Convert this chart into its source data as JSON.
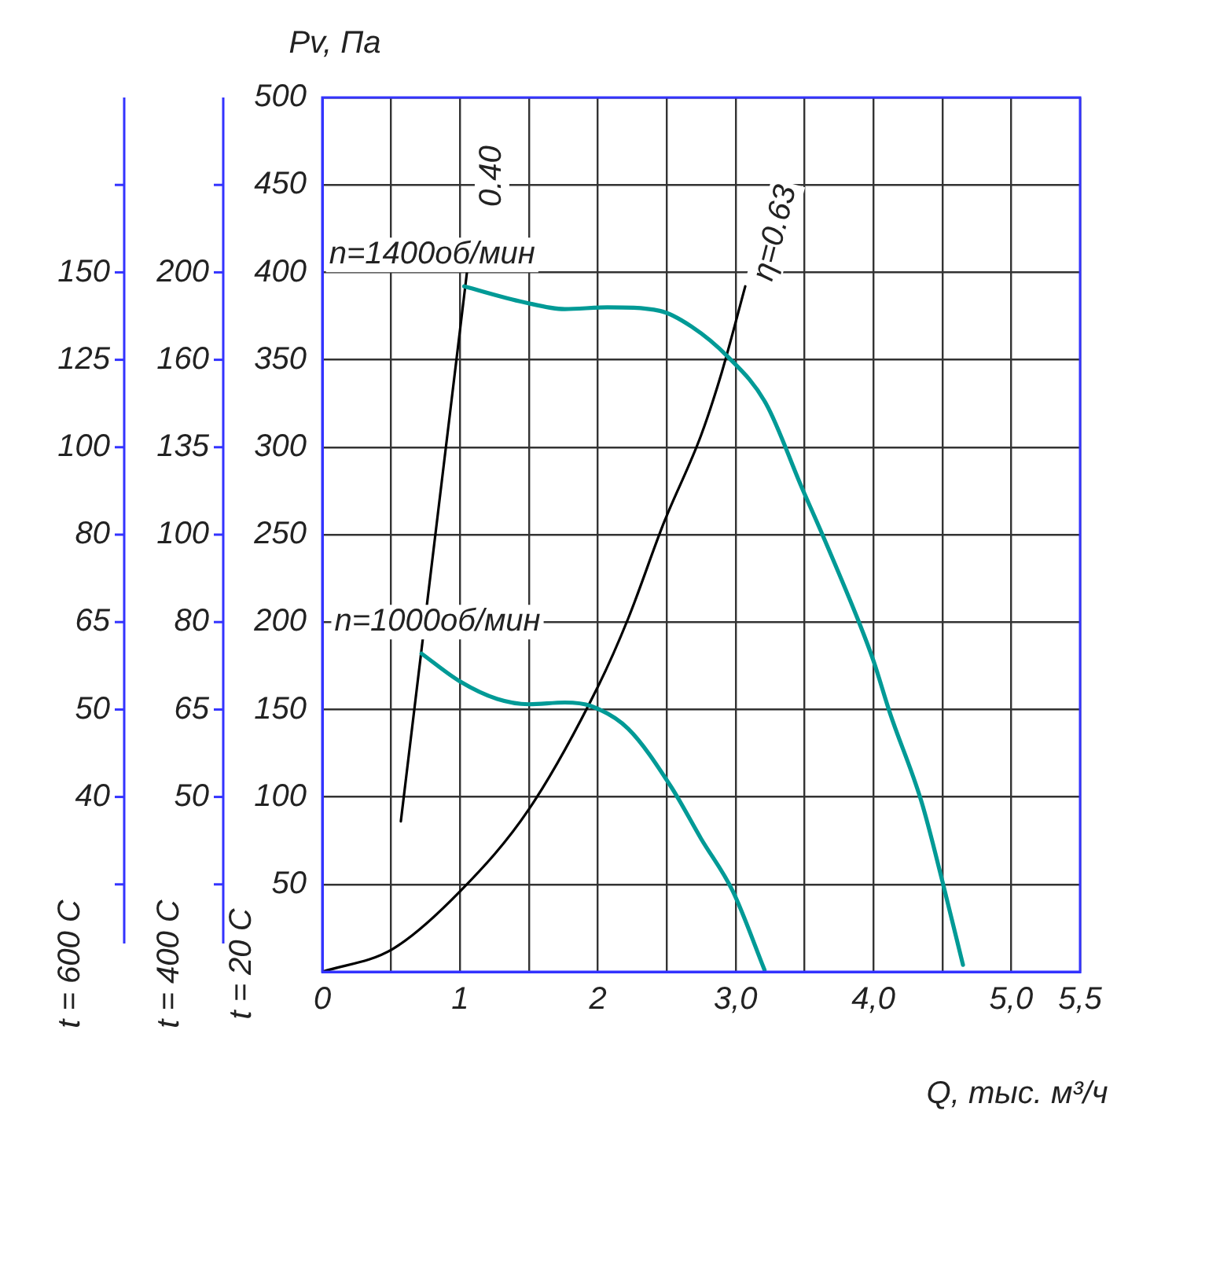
{
  "chart_data": {
    "type": "line",
    "xlabel": "Q, тыс. м³/ч",
    "ylabel": "Pv, Па",
    "y2label": "t = 400 С",
    "y3label": "t = 600 С",
    "xlim": [
      0,
      5.5
    ],
    "xticks": [
      0,
      {
        "value": 0.5,
        "label": null
      },
      1,
      {
        "value": 1.5,
        "label": null
      },
      2,
      {
        "value": 2.5,
        "label": null
      },
      {
        "value": 3,
        "label": "3,0"
      },
      {
        "value": 3.5,
        "label": null
      },
      {
        "value": 4,
        "label": "4,0"
      },
      {
        "value": 4.5,
        "label": null
      },
      {
        "value": 5,
        "label": "5,0"
      },
      {
        "value": 5.5,
        "label": "5,5"
      }
    ],
    "ylim": [
      0,
      500
    ],
    "yticks": [
      {
        "value": 0,
        "label": null
      },
      50,
      100,
      150,
      200,
      250,
      300,
      350,
      400,
      450,
      500
    ],
    "y2_categories": [
      null,
      "200",
      "160",
      "135",
      "100",
      "80",
      "65",
      "50",
      null
    ],
    "grid": true,
    "legend": false,
    "marker": "none",
    "line_style": "solid",
    "series": [
      {
        "color": "#009a96",
        "x": [
          1.03,
          1.46,
          1.76,
          2.07,
          2.45,
          2.68,
          2.94,
          3.22,
          3.48,
          3.63,
          3.9,
          4.0,
          4.12,
          4.35,
          4.5,
          4.65
        ],
        "values": [
          392,
          383,
          379,
          380,
          378,
          369,
          352,
          325,
          277,
          250,
          199,
          178,
          148,
          97,
          52,
          4
        ]
      },
      {
        "color": "#009a96",
        "x": [
          0.72,
          1.0,
          1.27,
          1.5,
          1.76,
          1.95,
          2.22,
          2.53,
          2.75,
          2.98,
          3.21
        ],
        "values": [
          182,
          166,
          156,
          153,
          154,
          152,
          139,
          106,
          76,
          46,
          1
        ]
      },
      {
        "color": "#000000",
        "x": [
          0,
          0.51,
          1.0,
          1.5,
          2.0,
          2.22,
          2.48,
          2.75,
          2.9,
          3.07
        ],
        "values": [
          0,
          13,
          46,
          93,
          163,
          202,
          257,
          307,
          343,
          392
        ]
      },
      {
        "color": "#000000",
        "x": [
          0.57,
          1.05
        ],
        "values": [
          86,
          400
        ]
      }
    ],
    "annotations": [
      "t = 20 С",
      "n=1400об/мин",
      "n=1000об/мин",
      "0.40",
      "η=0.63",
      "150",
      "125",
      "100",
      "80",
      "65",
      "50",
      "40"
    ]
  }
}
